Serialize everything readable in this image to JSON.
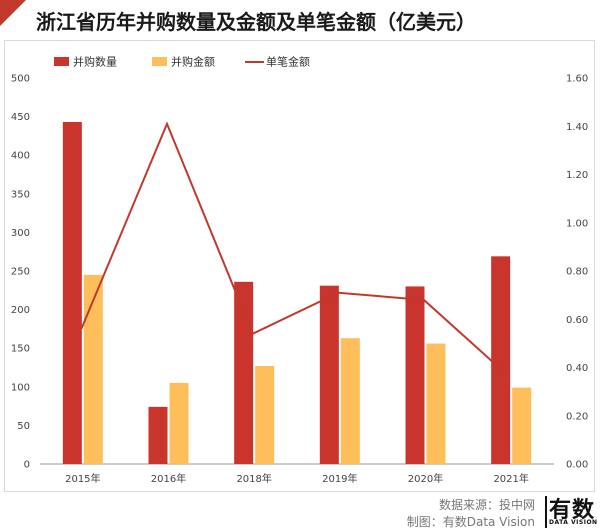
{
  "title": "浙江省历年并购数量及金额及单笔金额（亿美元）",
  "colors": {
    "count": "#c9342c",
    "amount": "#ffbe5c",
    "per_deal": "#c0392b",
    "accent": "#c0392b"
  },
  "chart_data": {
    "type": "bar",
    "categories": [
      "2015年",
      "2016年",
      "2018年",
      "2019年",
      "2020年",
      "2021年"
    ],
    "series": [
      {
        "name": "并购数量",
        "type": "bar",
        "axis": "left",
        "values": [
          443,
          74,
          236,
          231,
          230,
          269
        ]
      },
      {
        "name": "并购金额",
        "type": "bar",
        "axis": "left",
        "values": [
          245,
          105,
          127,
          163,
          156,
          99
        ]
      },
      {
        "name": "单笔金额",
        "type": "line",
        "axis": "right",
        "values": [
          0.56,
          1.41,
          0.54,
          0.71,
          0.68,
          0.36
        ]
      }
    ],
    "y_left": {
      "ticks": [
        "0",
        "50",
        "100",
        "150",
        "200",
        "250",
        "300",
        "350",
        "400",
        "450",
        "500"
      ],
      "lim": [
        0,
        500
      ]
    },
    "y_right": {
      "ticks": [
        "0.00",
        "0.20",
        "0.40",
        "0.60",
        "0.80",
        "1.00",
        "1.20",
        "1.40",
        "1.60"
      ],
      "lim": [
        0,
        1.6
      ]
    },
    "legend": "top-left",
    "grid": false
  },
  "footer": {
    "source": "数据来源：投中网",
    "credit": "制图：有数Data Vision"
  },
  "logo": {
    "main": "有数",
    "sub": "DATA VISION"
  }
}
